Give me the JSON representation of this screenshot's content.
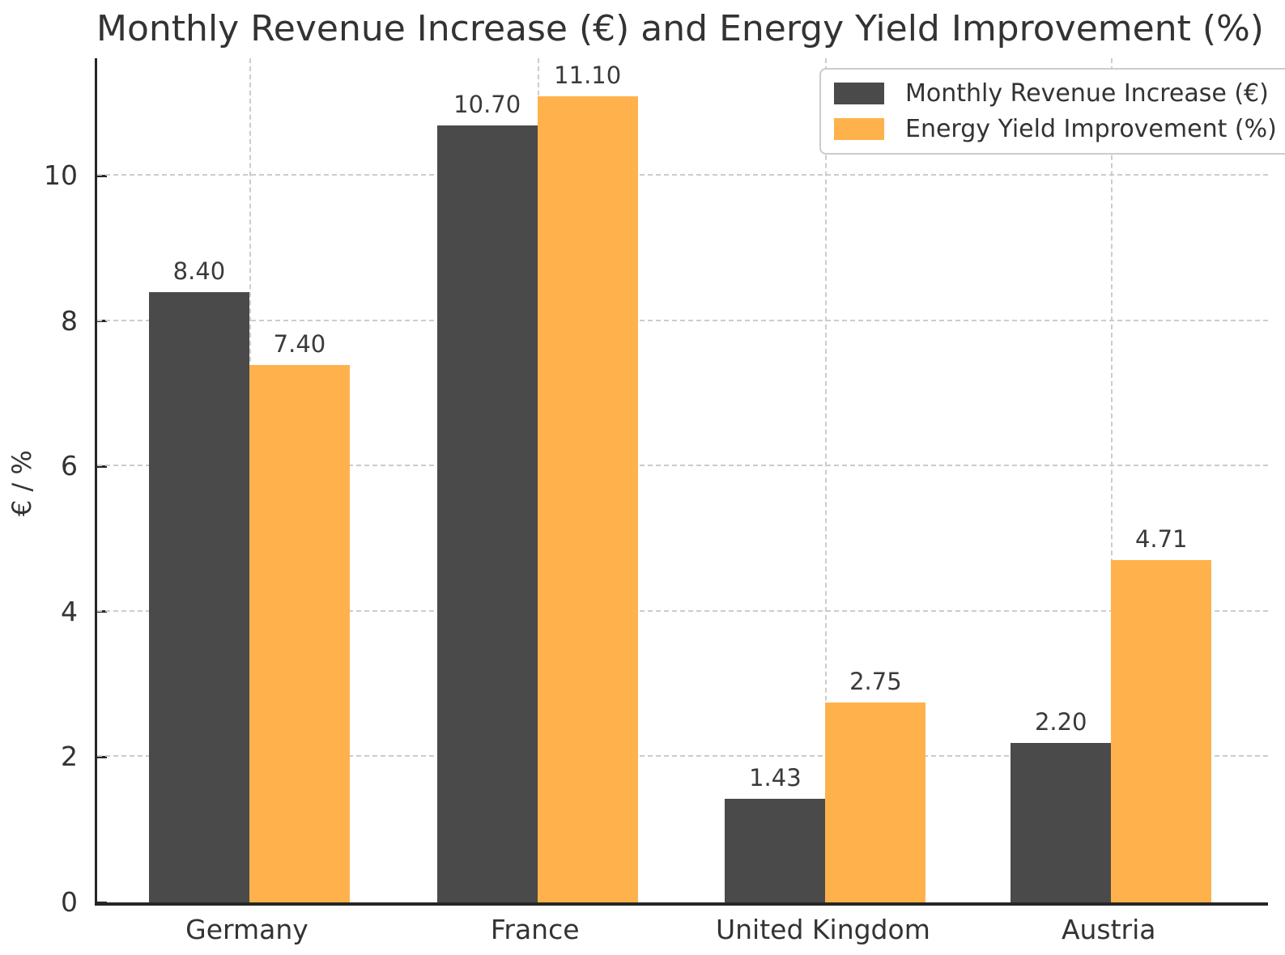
{
  "chart": {
    "title": "Monthly Revenue Increase (€) and Energy Yield Improvement (%)",
    "ylabel": "€ / %"
  },
  "chart_data": {
    "type": "bar",
    "title": "Monthly Revenue Increase (€) and Energy Yield Improvement (%)",
    "xlabel": "",
    "ylabel": "€ / %",
    "categories": [
      "Germany",
      "France",
      "United Kingdom",
      "Austria"
    ],
    "series": [
      {
        "name": "Monthly Revenue Increase (€)",
        "color": "#4a4a4a",
        "values": [
          8.4,
          10.7,
          1.43,
          2.2
        ],
        "value_labels": [
          "8.40",
          "10.70",
          "1.43",
          "2.20"
        ]
      },
      {
        "name": "Energy Yield Improvement (%)",
        "color": "#ffb24c",
        "values": [
          7.4,
          11.1,
          2.75,
          4.71
        ],
        "value_labels": [
          "7.40",
          "11.10",
          "2.75",
          "4.71"
        ]
      }
    ],
    "ylim": [
      0,
      11.62
    ],
    "yticks": [
      0,
      2,
      4,
      6,
      8,
      10
    ],
    "grid": true,
    "grid_style": "dashed",
    "legend_position": "upper right"
  }
}
